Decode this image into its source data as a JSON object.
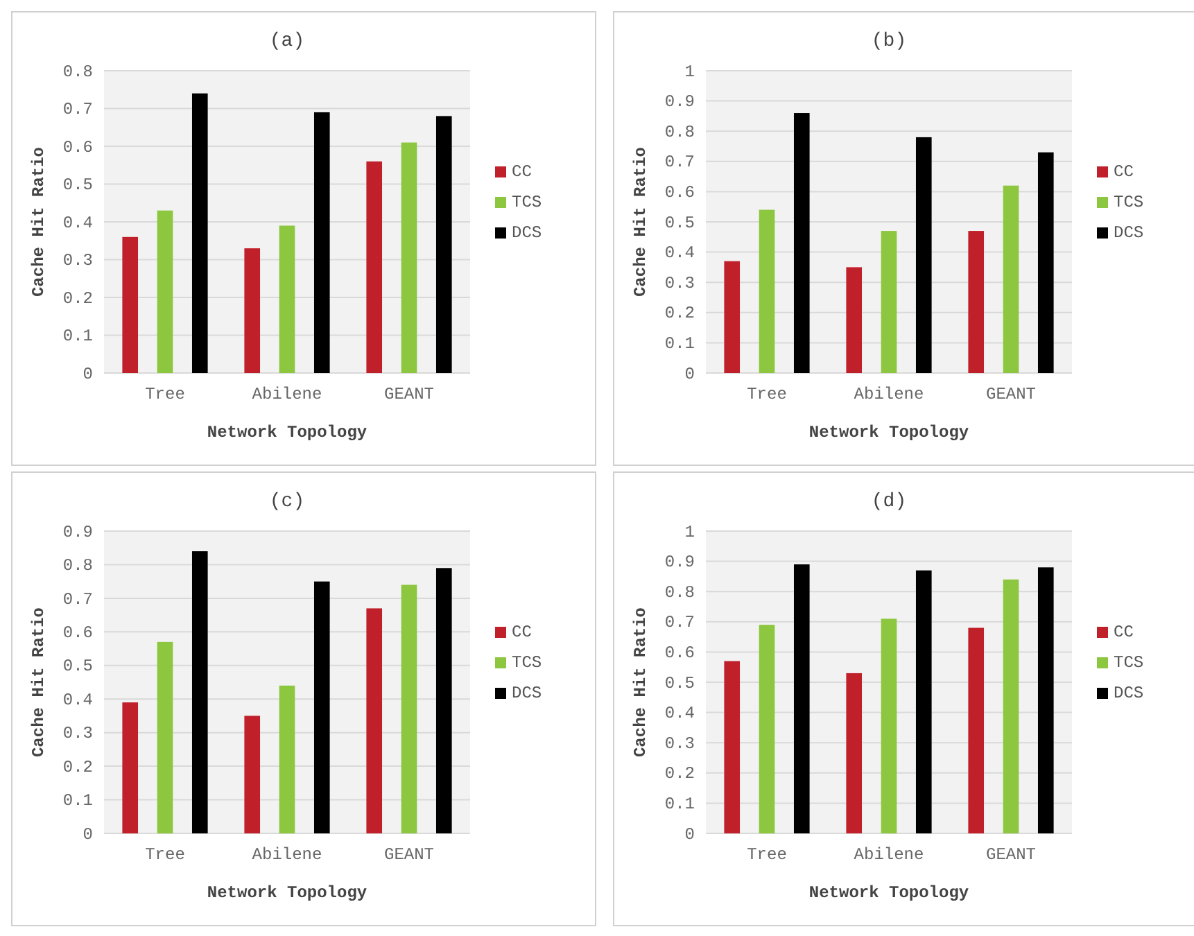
{
  "chart_data": [
    {
      "type": "bar",
      "title": "(a)",
      "xlabel": "Network Topology",
      "ylabel": "Cache Hit Ratio",
      "categories": [
        "Tree",
        "Abilene",
        "GEANT"
      ],
      "series": [
        {
          "name": "CC",
          "color": "#c0202a",
          "values": [
            0.36,
            0.33,
            0.56
          ]
        },
        {
          "name": "TCS",
          "color": "#8dc63f",
          "values": [
            0.43,
            0.39,
            0.61
          ]
        },
        {
          "name": "DCS",
          "color": "#000000",
          "values": [
            0.74,
            0.69,
            0.68
          ]
        }
      ],
      "ylim": [
        0,
        0.8
      ],
      "yticks": [
        0,
        0.1,
        0.2,
        0.3,
        0.4,
        0.5,
        0.6,
        0.7,
        0.8
      ],
      "grid": "y",
      "legend": "right"
    },
    {
      "type": "bar",
      "title": "(b)",
      "xlabel": "Network Topology",
      "ylabel": "Cache Hit Ratio",
      "categories": [
        "Tree",
        "Abilene",
        "GEANT"
      ],
      "series": [
        {
          "name": "CC",
          "color": "#c0202a",
          "values": [
            0.37,
            0.35,
            0.47
          ]
        },
        {
          "name": "TCS",
          "color": "#8dc63f",
          "values": [
            0.54,
            0.47,
            0.62
          ]
        },
        {
          "name": "DCS",
          "color": "#000000",
          "values": [
            0.86,
            0.78,
            0.73
          ]
        }
      ],
      "ylim": [
        0,
        1
      ],
      "yticks": [
        0,
        0.1,
        0.2,
        0.3,
        0.4,
        0.5,
        0.6,
        0.7,
        0.8,
        0.9,
        1
      ],
      "grid": "y",
      "legend": "right"
    },
    {
      "type": "bar",
      "title": "(c)",
      "xlabel": "Network Topology",
      "ylabel": "Cache Hit Ratio",
      "categories": [
        "Tree",
        "Abilene",
        "GEANT"
      ],
      "series": [
        {
          "name": "CC",
          "color": "#c0202a",
          "values": [
            0.39,
            0.35,
            0.67
          ]
        },
        {
          "name": "TCS",
          "color": "#8dc63f",
          "values": [
            0.57,
            0.44,
            0.74
          ]
        },
        {
          "name": "DCS",
          "color": "#000000",
          "values": [
            0.84,
            0.75,
            0.79
          ]
        }
      ],
      "ylim": [
        0,
        0.9
      ],
      "yticks": [
        0,
        0.1,
        0.2,
        0.3,
        0.4,
        0.5,
        0.6,
        0.7,
        0.8,
        0.9
      ],
      "grid": "y",
      "legend": "right"
    },
    {
      "type": "bar",
      "title": "(d)",
      "xlabel": "Network Topology",
      "ylabel": "Cache Hit Ratio",
      "categories": [
        "Tree",
        "Abilene",
        "GEANT"
      ],
      "series": [
        {
          "name": "CC",
          "color": "#c0202a",
          "values": [
            0.57,
            0.53,
            0.68
          ]
        },
        {
          "name": "TCS",
          "color": "#8dc63f",
          "values": [
            0.69,
            0.71,
            0.84
          ]
        },
        {
          "name": "DCS",
          "color": "#000000",
          "values": [
            0.89,
            0.87,
            0.88
          ]
        }
      ],
      "ylim": [
        0,
        1
      ],
      "yticks": [
        0,
        0.1,
        0.2,
        0.3,
        0.4,
        0.5,
        0.6,
        0.7,
        0.8,
        0.9,
        1
      ],
      "grid": "y",
      "legend": "right"
    }
  ]
}
